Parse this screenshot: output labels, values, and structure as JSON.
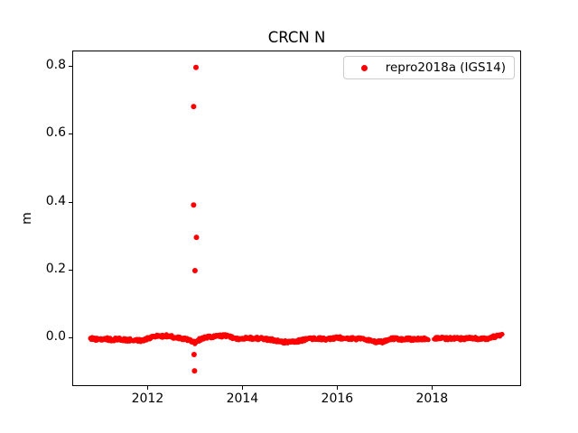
{
  "chart_data": {
    "type": "scatter",
    "title": "CRCN N",
    "xlabel": "",
    "ylabel": "m",
    "series_name": "repro2018a (IGS14)",
    "marker_color": "#ff0000",
    "legend_position": "upper right",
    "grid": false,
    "xlim": [
      2010.41,
      2019.88
    ],
    "ylim": [
      -0.143,
      0.845
    ],
    "x_ticks": [
      2012,
      2014,
      2016,
      2018
    ],
    "y_ticks": [
      0.0,
      0.2,
      0.4,
      0.6,
      0.8
    ],
    "band_description": "dense daily position scatter near 0 m from 2010.8 to 2019.5",
    "band": [
      [
        2010.79,
        -0.003
      ],
      [
        2010.9,
        -0.005
      ],
      [
        2011.0,
        -0.006
      ],
      [
        2011.1,
        -0.003
      ],
      [
        2011.25,
        -0.007
      ],
      [
        2011.4,
        -0.004
      ],
      [
        2011.55,
        -0.008
      ],
      [
        2011.7,
        -0.006
      ],
      [
        2011.85,
        -0.009
      ],
      [
        2011.95,
        -0.005
      ],
      [
        2012.1,
        0.002
      ],
      [
        2012.2,
        0.006
      ],
      [
        2012.3,
        0.004
      ],
      [
        2012.45,
        0.005
      ],
      [
        2012.55,
        0.001
      ],
      [
        2012.7,
        -0.003
      ],
      [
        2012.85,
        -0.006
      ],
      [
        2012.95,
        -0.013
      ],
      [
        2013.0,
        -0.015
      ],
      [
        2013.1,
        -0.006
      ],
      [
        2013.2,
        -0.001
      ],
      [
        2013.35,
        0.002
      ],
      [
        2013.5,
        0.004
      ],
      [
        2013.65,
        0.006
      ],
      [
        2013.8,
        -0.001
      ],
      [
        2013.95,
        -0.005
      ],
      [
        2014.1,
        -0.002
      ],
      [
        2014.25,
        -0.003
      ],
      [
        2014.4,
        -0.002
      ],
      [
        2014.55,
        -0.006
      ],
      [
        2014.7,
        -0.009
      ],
      [
        2014.85,
        -0.013
      ],
      [
        2015.0,
        -0.014
      ],
      [
        2015.15,
        -0.011
      ],
      [
        2015.3,
        -0.007
      ],
      [
        2015.45,
        -0.004
      ],
      [
        2015.6,
        -0.003
      ],
      [
        2015.75,
        -0.005
      ],
      [
        2015.9,
        -0.003
      ],
      [
        2016.05,
        -0.001
      ],
      [
        2016.2,
        -0.002
      ],
      [
        2016.35,
        -0.004
      ],
      [
        2016.5,
        -0.003
      ],
      [
        2016.65,
        -0.007
      ],
      [
        2016.8,
        -0.012
      ],
      [
        2016.95,
        -0.013
      ],
      [
        2017.05,
        -0.007
      ],
      [
        2017.2,
        -0.003
      ],
      [
        2017.35,
        -0.005
      ],
      [
        2017.5,
        -0.004
      ],
      [
        2017.65,
        -0.006
      ],
      [
        2017.8,
        -0.004
      ],
      [
        2017.92,
        -0.004
      ],
      [
        2018.04,
        -0.002
      ],
      [
        2018.15,
        -0.001
      ],
      [
        2018.3,
        -0.003
      ],
      [
        2018.45,
        -0.002
      ],
      [
        2018.6,
        -0.004
      ],
      [
        2018.75,
        -0.002
      ],
      [
        2018.9,
        -0.003
      ],
      [
        2019.05,
        -0.005
      ],
      [
        2019.15,
        -0.004
      ],
      [
        2019.25,
        -0.001
      ],
      [
        2019.35,
        0.004
      ],
      [
        2019.49,
        0.009
      ]
    ],
    "gaps": [
      [
        2017.93,
        2018.03
      ]
    ],
    "outliers": [
      [
        2013.02,
        0.795
      ],
      [
        2012.97,
        0.68
      ],
      [
        2012.97,
        0.39
      ],
      [
        2013.03,
        0.295
      ],
      [
        2013.0,
        0.197
      ],
      [
        2012.98,
        -0.05
      ],
      [
        2012.99,
        -0.098
      ]
    ]
  }
}
